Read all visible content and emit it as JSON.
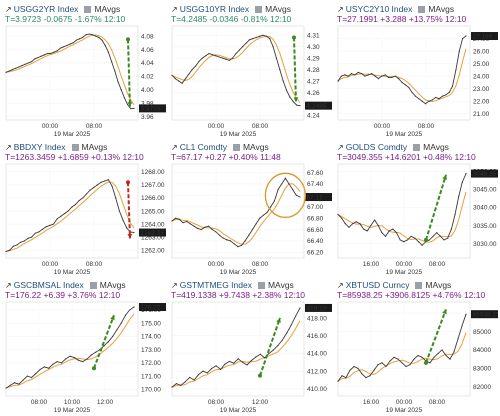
{
  "panels": [
    {
      "ticker": "USGG2YR Index",
      "legend": "MAvgs",
      "stat": {
        "last": "T=3.9723",
        "change": "-0.0675",
        "pct": "-1.67%",
        "time": "12:10",
        "direction": "down"
      },
      "last_label": "3.9723",
      "chart_data": {
        "type": "line",
        "x_ticks": [
          "00:00",
          "08:00"
        ],
        "date_label": "19 Mar 2025",
        "y_ticks": [
          4.08,
          4.06,
          4.04,
          4.02,
          4.0,
          3.98,
          3.96
        ],
        "ylim": [
          3.955,
          4.095
        ],
        "values": [
          4.026,
          4.028,
          4.03,
          4.032,
          4.034,
          4.036,
          4.038,
          4.04,
          4.042,
          4.046,
          4.048,
          4.05,
          4.052,
          4.054,
          4.054,
          4.056,
          4.058,
          4.062,
          4.064,
          4.066,
          4.068,
          4.07,
          4.074,
          4.076,
          4.078,
          4.082,
          4.083,
          4.082,
          4.08,
          4.078,
          4.074,
          4.066,
          4.056,
          4.042,
          4.028,
          4.012,
          4.0,
          3.988,
          3.978,
          3.972,
          3.9723
        ],
        "arrow": {
          "color": "#3a8a1e",
          "dir": "down",
          "from_y": 4.075,
          "to_y": 3.975
        },
        "line_color": "#3a3a3a"
      }
    },
    {
      "ticker": "USGG10YR Index",
      "legend": "MAvgs",
      "stat": {
        "last": "T=4.2485",
        "change": "-0.0346",
        "pct": "-0.81%",
        "time": "12:10",
        "direction": "down"
      },
      "last_label": "4.2485",
      "chart_data": {
        "type": "line",
        "x_ticks": [
          "00:00",
          "08:00"
        ],
        "date_label": "19 Mar 2025",
        "y_ticks": [
          4.31,
          4.3,
          4.29,
          4.28,
          4.27,
          4.26,
          4.25,
          4.24
        ],
        "ylim": [
          4.236,
          4.318
        ],
        "values": [
          4.275,
          4.272,
          4.27,
          4.268,
          4.272,
          4.276,
          4.28,
          4.283,
          4.287,
          4.29,
          4.292,
          4.294,
          4.293,
          4.292,
          4.291,
          4.29,
          4.289,
          4.288,
          4.29,
          4.294,
          4.297,
          4.3,
          4.303,
          4.306,
          4.307,
          4.308,
          4.309,
          4.31,
          4.309,
          4.307,
          4.3,
          4.29,
          4.28,
          4.27,
          4.262,
          4.256,
          4.252,
          4.249,
          4.2485
        ],
        "arrow": {
          "color": "#3a8a1e",
          "dir": "down",
          "from_y": 4.308,
          "to_y": 4.252
        },
        "line_color": "#3a3a3a"
      }
    },
    {
      "ticker": "USYC2Y10 Index",
      "legend": "MAvgs",
      "stat": {
        "last": "T=27.1991",
        "change": "+3.288",
        "pct": "+13.75%",
        "time": "12:10",
        "direction": "up"
      },
      "last_label": "27.199",
      "chart_data": {
        "type": "line",
        "x_ticks": [
          "00:00",
          "08:00"
        ],
        "date_label": "19 Mar 2025",
        "y_ticks": [
          27.0,
          26.0,
          25.0,
          24.0,
          23.0,
          22.0,
          21.0
        ],
        "ylim": [
          20.5,
          28.0
        ],
        "values": [
          23.6,
          24.0,
          24.1,
          24.0,
          24.2,
          24.1,
          24.3,
          24.2,
          24.0,
          24.1,
          24.2,
          24.0,
          23.8,
          24.0,
          24.1,
          23.9,
          23.9,
          24.0,
          23.8,
          23.5,
          23.3,
          23.1,
          22.7,
          22.4,
          22.2,
          22.0,
          21.8,
          22.0,
          22.1,
          22.3,
          22.2,
          22.4,
          22.5,
          22.7,
          23.2,
          24.5,
          26.0,
          27.0,
          27.2
        ],
        "arrow": null,
        "line_color": "#3a3a3a"
      }
    },
    {
      "ticker": "BBDXY Index",
      "legend": "MAvgs",
      "stat": {
        "last": "T=1263.3459",
        "change": "+1.6859",
        "pct": "+0.13%",
        "time": "12:10",
        "direction": "up"
      },
      "last_label": "1263.35",
      "chart_data": {
        "type": "line",
        "x_ticks": [
          "00:00",
          "08:00"
        ],
        "date_label": "19 Mar 2025",
        "y_ticks": [
          1268.0,
          1267.0,
          1266.0,
          1265.0,
          1264.0,
          1263.0,
          1262.0
        ],
        "ylim": [
          1261.4,
          1268.6
        ],
        "values": [
          1261.9,
          1262.0,
          1262.3,
          1262.4,
          1262.6,
          1262.7,
          1262.9,
          1263.0,
          1263.3,
          1263.4,
          1263.6,
          1263.8,
          1263.9,
          1264.0,
          1264.4,
          1264.6,
          1264.8,
          1265.0,
          1265.3,
          1265.5,
          1265.8,
          1266.0,
          1266.3,
          1266.6,
          1266.8,
          1267.0,
          1267.2,
          1267.3,
          1267.4,
          1266.9,
          1266.0,
          1265.0,
          1264.3,
          1263.7,
          1263.4,
          1263.35
        ],
        "arrow": {
          "color": "#c0281e",
          "dir": "down",
          "from_y": 1267.2,
          "to_y": 1262.9
        },
        "line_color": "#3a3a3a"
      }
    },
    {
      "ticker": "CL1 Comdty",
      "legend": "MAvgs",
      "stat": {
        "last": "T=67.17",
        "change": "+0.27",
        "pct": "+0.40%",
        "time": "11:48",
        "direction": "up"
      },
      "last_label": "67.17",
      "chart_data": {
        "type": "line",
        "x_ticks": [
          "00:00",
          "08:00"
        ],
        "date_label": "19 Mar 2025",
        "y_ticks": [
          67.6,
          67.4,
          67.2,
          67.0,
          66.8,
          66.6,
          66.4,
          66.2
        ],
        "ylim": [
          66.1,
          67.75
        ],
        "values": [
          66.75,
          66.8,
          66.78,
          66.72,
          66.74,
          66.7,
          66.66,
          66.62,
          66.6,
          66.64,
          66.66,
          66.6,
          66.56,
          66.5,
          66.45,
          66.42,
          66.4,
          66.35,
          66.3,
          66.32,
          66.4,
          66.5,
          66.6,
          66.7,
          66.8,
          66.85,
          66.9,
          67.0,
          67.1,
          67.3,
          67.4,
          67.5,
          67.4,
          67.3,
          67.2,
          67.17
        ],
        "arrow": null,
        "circle": {
          "color": "#d89a2a"
        },
        "line_color": "#3a3a3a"
      }
    },
    {
      "ticker": "GOLDS Comdty",
      "legend": "MAvgs",
      "stat": {
        "last": "T=3049.355",
        "change": "+14.6201",
        "pct": "+0.48%",
        "time": "12:10",
        "direction": "up"
      },
      "last_label": "3049.35",
      "chart_data": {
        "type": "line",
        "x_ticks": [
          "16:00",
          "00:00",
          "08:00"
        ],
        "date_label": "19 Mar 2025",
        "y_ticks": [
          3050.0,
          3045.0,
          3040.0,
          3035.0,
          3030.0
        ],
        "ylim": [
          3026.0,
          3052.0
        ],
        "values": [
          3038.0,
          3037.0,
          3035.5,
          3034.5,
          3035.5,
          3036.0,
          3035.5,
          3034.0,
          3033.5,
          3035.0,
          3036.5,
          3035.0,
          3033.0,
          3032.0,
          3033.5,
          3034.0,
          3033.0,
          3031.0,
          3030.5,
          3031.0,
          3032.0,
          3031.5,
          3030.5,
          3029.5,
          3030.5,
          3031.0,
          3032.0,
          3033.0,
          3032.0,
          3031.0,
          3031.5,
          3034.0,
          3038.0,
          3043.0,
          3047.0,
          3049.35
        ],
        "arrow": {
          "color": "#3a8a1e",
          "dir": "up",
          "from_y": 3031.0,
          "to_y": 3049.0
        },
        "line_color": "#3a3a3a"
      }
    },
    {
      "ticker": "GSCBMSAL Index",
      "legend": "MAvgs",
      "stat": {
        "last": "T=176.22",
        "change": "+6.39",
        "pct": "+3.76%",
        "time": "12:10",
        "direction": "up"
      },
      "last_label": "176.22",
      "chart_data": {
        "type": "line",
        "x_ticks": [
          "08:00",
          "10:00",
          "12:00"
        ],
        "date_label": "19 Mar 2025",
        "y_ticks": [
          176.0,
          175.0,
          174.0,
          173.0,
          172.0,
          171.0,
          170.0
        ],
        "ylim": [
          169.5,
          176.6
        ],
        "values": [
          170.1,
          170.3,
          170.5,
          170.4,
          170.7,
          171.0,
          170.9,
          171.2,
          171.5,
          171.7,
          171.6,
          171.9,
          172.1,
          172.0,
          172.3,
          172.5,
          172.4,
          172.2,
          172.1,
          172.3,
          172.6,
          172.8,
          173.0,
          173.3,
          173.6,
          174.0,
          174.5,
          175.0,
          175.6,
          176.0,
          176.22
        ],
        "arrow": {
          "color": "#3a8a1e",
          "dir": "up",
          "from_y": 171.6,
          "to_y": 175.6
        },
        "line_color": "#3a3a3a"
      }
    },
    {
      "ticker": "GSTMTMEG Index",
      "legend": "MAvgs",
      "stat": {
        "last": "T=419.1338",
        "change": "+9.7438",
        "pct": "+2.38%",
        "time": "12:10",
        "direction": "up"
      },
      "last_label": "419.13",
      "chart_data": {
        "type": "line",
        "x_ticks": [
          "08:00",
          "12:00"
        ],
        "date_label": "19 Mar 2025",
        "y_ticks": [
          418.0,
          416.0,
          414.0,
          412.0,
          410.0
        ],
        "ylim": [
          409.2,
          419.8
        ],
        "values": [
          410.2,
          410.6,
          410.4,
          410.8,
          411.3,
          411.0,
          411.6,
          412.0,
          411.8,
          412.3,
          412.6,
          412.2,
          412.8,
          413.1,
          412.9,
          413.4,
          413.0,
          412.7,
          413.2,
          413.6,
          413.9,
          413.5,
          414.0,
          414.4,
          414.9,
          415.5,
          416.3,
          417.2,
          418.2,
          419.13
        ],
        "arrow": {
          "color": "#3a8a1e",
          "dir": "up",
          "from_y": 411.5,
          "to_y": 418.0
        },
        "line_color": "#3a3a3a"
      }
    },
    {
      "ticker": "XBTUSD Curncy",
      "legend": "MAvgs",
      "stat": {
        "last": "T=85938.25",
        "change": "+3906.8125",
        "pct": "+4.76%",
        "time": "12:10",
        "direction": "up"
      },
      "last_label": "85938.25",
      "chart_data": {
        "type": "line",
        "x_ticks": [
          "16:00",
          "00:00",
          "08:00"
        ],
        "date_label": "19 Mar 2025",
        "y_ticks": [
          86000,
          85000,
          84000,
          83000,
          82000
        ],
        "ylim": [
          81500,
          86600
        ],
        "values": [
          82300,
          82600,
          82500,
          82900,
          83100,
          83000,
          82700,
          82500,
          82600,
          82900,
          83200,
          83300,
          83100,
          83400,
          83600,
          83500,
          83300,
          83100,
          83200,
          83500,
          83700,
          83600,
          83400,
          83300,
          83600,
          83800,
          84000,
          83700,
          83500,
          83900,
          84600,
          85300,
          85938
        ],
        "arrow": {
          "color": "#3a8a1e",
          "dir": "up",
          "from_y": 83300,
          "to_y": 86200
        },
        "line_color": "#3a3a3a"
      }
    }
  ]
}
